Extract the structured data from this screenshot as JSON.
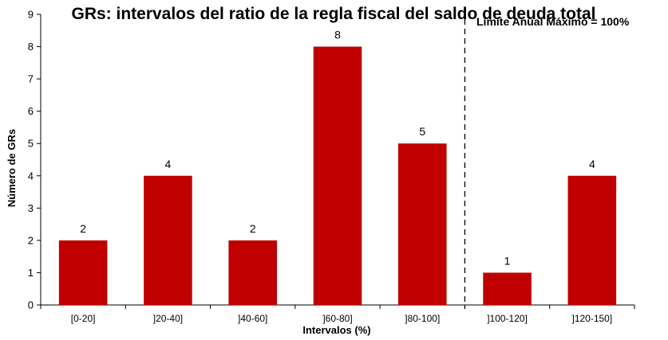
{
  "chart_data": {
    "type": "bar",
    "title": "GRs: intervalos del ratio de la regla fiscal del saldo de deuda total",
    "xlabel": "Intervalos (%)",
    "ylabel": "Número de GRs",
    "ylim": [
      0,
      9
    ],
    "yticks": [
      "0",
      "1",
      "2",
      "3",
      "4",
      "5",
      "6",
      "7",
      "8",
      "9"
    ],
    "categories": [
      "[0-20]",
      "]20-40]",
      "]40-60]",
      "]60-80]",
      "]80-100]",
      "]100-120]",
      "]120-150]"
    ],
    "values": [
      2,
      4,
      2,
      8,
      5,
      1,
      4
    ],
    "data_labels": [
      "2",
      "4",
      "2",
      "8",
      "5",
      "1",
      "4"
    ],
    "bar_color": "#C00000",
    "grid": false,
    "legend": "none",
    "annotation": {
      "text": "Límite Anual Máximo = 100%",
      "line_style": "dashed",
      "after_category": "]80-100]"
    }
  }
}
